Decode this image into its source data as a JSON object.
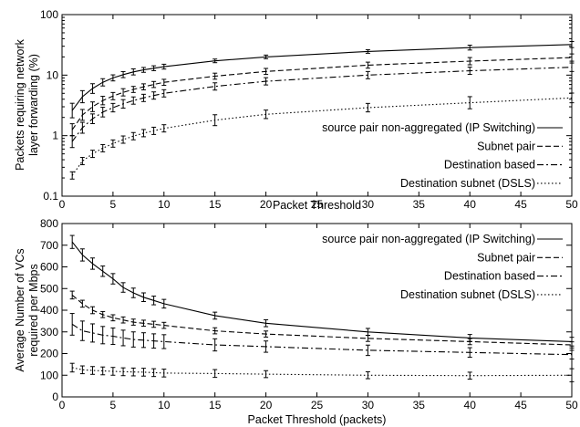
{
  "chart_data": [
    {
      "type": "line",
      "xlabel": "Packet Threshold",
      "ylabel_lines": [
        "Packets requiring network",
        "layer forwarding (%)"
      ],
      "xlim": [
        0,
        50
      ],
      "ylim": [
        0.1,
        100
      ],
      "yscale": "log",
      "xticks": [
        0,
        5,
        10,
        15,
        20,
        25,
        30,
        35,
        40,
        45,
        50
      ],
      "xtick_labels": [
        "0",
        "5",
        "10",
        "15",
        "20",
        "25",
        "30",
        "35",
        "40",
        "45",
        "50"
      ],
      "yticks": [
        0.1,
        1,
        10,
        100
      ],
      "ytick_labels": [
        "0.1",
        "1",
        "10",
        "100"
      ],
      "legend_position": "bottom-right",
      "x": [
        1,
        2,
        3,
        4,
        5,
        6,
        7,
        8,
        9,
        10,
        15,
        20,
        30,
        40,
        50
      ],
      "series": [
        {
          "name": "source pair non-aggregated (IP Switching)",
          "dash": "solid",
          "values": [
            2.6,
            4.4,
            6.0,
            7.6,
            9.0,
            10.2,
            11.3,
            12.2,
            13.0,
            13.8,
            17.2,
            20.0,
            24.6,
            28.5,
            32.0
          ],
          "err": [
            0.12,
            0.1,
            0.08,
            0.06,
            0.05,
            0.05,
            0.05,
            0.04,
            0.04,
            0.04,
            0.03,
            0.03,
            0.03,
            0.04,
            0.05
          ]
        },
        {
          "name": "Subnet pair",
          "dash": "dashed",
          "values": [
            1.25,
            2.2,
            3.0,
            3.8,
            4.5,
            5.2,
            5.8,
            6.4,
            7.0,
            7.6,
            9.6,
            11.5,
            14.6,
            17.0,
            19.5
          ],
          "err": [
            0.1,
            0.09,
            0.08,
            0.07,
            0.06,
            0.06,
            0.05,
            0.05,
            0.05,
            0.05,
            0.05,
            0.05,
            0.05,
            0.06,
            0.06
          ]
        },
        {
          "name": "Destination based",
          "dash": "dashdot",
          "values": [
            0.8,
            1.35,
            1.9,
            2.45,
            2.9,
            3.35,
            3.8,
            4.2,
            4.6,
            5.0,
            6.5,
            7.9,
            10.0,
            11.8,
            13.5
          ],
          "err": [
            0.1,
            0.09,
            0.08,
            0.08,
            0.07,
            0.07,
            0.06,
            0.06,
            0.06,
            0.06,
            0.06,
            0.06,
            0.06,
            0.06,
            0.07
          ]
        },
        {
          "name": "Destination subnet (DSLS)",
          "dash": "dotted",
          "values": [
            0.22,
            0.38,
            0.5,
            0.62,
            0.74,
            0.86,
            0.98,
            1.1,
            1.2,
            1.32,
            1.8,
            2.25,
            2.9,
            3.5,
            4.2
          ],
          "err": [
            0.06,
            0.06,
            0.06,
            0.06,
            0.06,
            0.06,
            0.06,
            0.06,
            0.06,
            0.06,
            0.09,
            0.07,
            0.07,
            0.1,
            0.08
          ]
        }
      ]
    },
    {
      "type": "line",
      "xlabel": "Packet Threshold (packets)",
      "ylabel_lines": [
        "Average Number of VCs",
        "required per Mbps"
      ],
      "xlim": [
        0,
        50
      ],
      "ylim": [
        0,
        800
      ],
      "yscale": "linear",
      "xticks": [
        0,
        5,
        10,
        15,
        20,
        25,
        30,
        35,
        40,
        45,
        50
      ],
      "xtick_labels": [
        "0",
        "5",
        "10",
        "15",
        "20",
        "25",
        "30",
        "35",
        "40",
        "45",
        "50"
      ],
      "yticks": [
        0,
        100,
        200,
        300,
        400,
        500,
        600,
        700,
        800
      ],
      "ytick_labels": [
        "0",
        "100",
        "200",
        "300",
        "400",
        "500",
        "600",
        "700",
        "800"
      ],
      "legend_position": "top-right",
      "x": [
        1,
        2,
        3,
        4,
        5,
        6,
        7,
        8,
        9,
        10,
        15,
        20,
        30,
        40,
        50
      ],
      "series": [
        {
          "name": "source pair non-aggregated (IP Switching)",
          "dash": "solid",
          "values": [
            715,
            655,
            615,
            580,
            545,
            505,
            480,
            460,
            445,
            430,
            375,
            340,
            300,
            272,
            255
          ],
          "err": [
            30,
            28,
            26,
            24,
            24,
            22,
            22,
            20,
            20,
            20,
            16,
            16,
            16,
            16,
            20
          ]
        },
        {
          "name": "Subnet pair",
          "dash": "dashed",
          "values": [
            470,
            430,
            400,
            380,
            365,
            355,
            345,
            340,
            335,
            330,
            305,
            290,
            270,
            255,
            240
          ],
          "err": [
            18,
            16,
            16,
            14,
            14,
            14,
            14,
            14,
            14,
            14,
            14,
            14,
            14,
            14,
            14
          ]
        },
        {
          "name": "Destination based",
          "dash": "dashdot",
          "values": [
            335,
            305,
            295,
            285,
            280,
            272,
            265,
            262,
            258,
            255,
            240,
            232,
            215,
            205,
            195
          ],
          "err": [
            50,
            45,
            42,
            40,
            38,
            36,
            35,
            34,
            33,
            32,
            28,
            26,
            24,
            22,
            20
          ]
        },
        {
          "name": "Destination subnet (DSLS)",
          "dash": "dotted",
          "values": [
            135,
            125,
            122,
            120,
            118,
            116,
            115,
            114,
            112,
            110,
            108,
            105,
            100,
            98,
            100
          ],
          "err": [
            20,
            18,
            18,
            18,
            18,
            18,
            18,
            18,
            18,
            18,
            18,
            16,
            16,
            16,
            30
          ]
        }
      ]
    }
  ]
}
